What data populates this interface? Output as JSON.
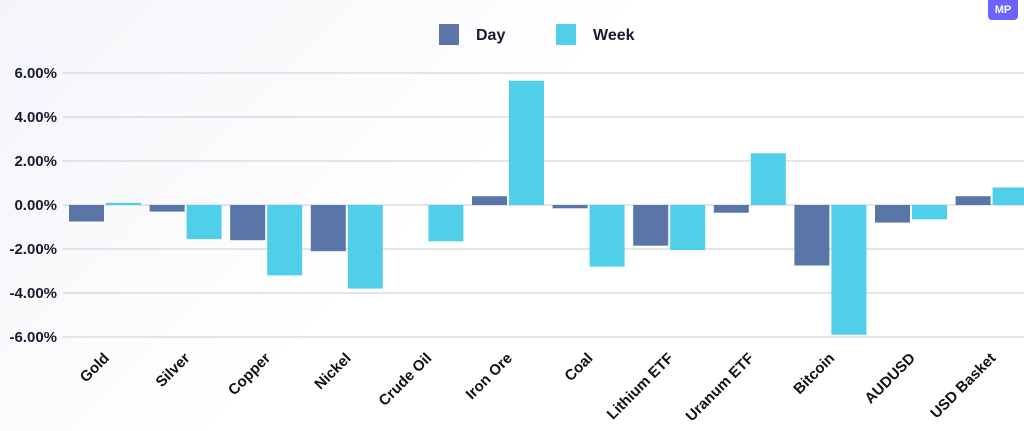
{
  "badge": {
    "label": "MP"
  },
  "colors": {
    "day": "#5a76a8",
    "week": "#4fd0e8",
    "grid": "#c9ccd3"
  },
  "chart_data": {
    "type": "bar",
    "title": "",
    "xlabel": "",
    "ylabel": "",
    "legend_position": "top-center",
    "grid": true,
    "ylim": [
      -6,
      6
    ],
    "yticks": [
      6,
      4,
      2,
      0,
      -2,
      -4,
      -6
    ],
    "ytick_labels": [
      "6.00%",
      "4.00%",
      "2.00%",
      "0.00%",
      "-2.00%",
      "-4.00%",
      "-6.00%"
    ],
    "categories": [
      "Gold",
      "Silver",
      "Copper",
      "Nickel",
      "Crude Oil",
      "Iron Ore",
      "Coal",
      "Lithium ETF",
      "Uranum ETF",
      "Bitcoin",
      "AUDUSD",
      "USD Basket"
    ],
    "series": [
      {
        "name": "Day",
        "values": [
          -0.75,
          -0.3,
          -1.6,
          -2.1,
          0.0,
          0.4,
          -0.15,
          -1.85,
          -0.35,
          -2.75,
          -0.8,
          0.4
        ]
      },
      {
        "name": "Week",
        "values": [
          0.1,
          -1.55,
          -3.2,
          -3.8,
          -1.65,
          5.65,
          -2.8,
          -2.05,
          2.35,
          -5.9,
          -0.65,
          0.8
        ]
      }
    ]
  }
}
